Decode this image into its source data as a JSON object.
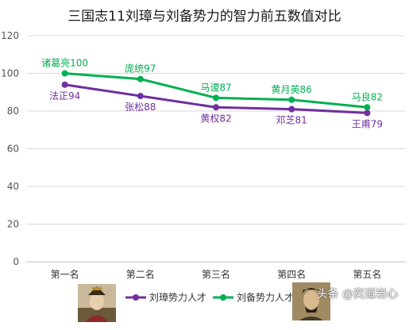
{
  "title": "三国志11刘璋与刘备势力的智力前五数值对比",
  "watermark": "头条 @奕道岩心",
  "colors": {
    "liuzhang": "#7030a0",
    "liubei": "#00b050",
    "grid": "#d9d9d9",
    "axis": "#bfbfbf"
  },
  "chart_data": {
    "type": "line",
    "categories": [
      "第一名",
      "第二名",
      "第三名",
      "第四名",
      "第五名"
    ],
    "ylim": [
      0,
      120
    ],
    "yticks": [
      0,
      20,
      40,
      60,
      80,
      100,
      120
    ],
    "grid": true,
    "legend_position": "bottom",
    "series": [
      {
        "name": "刘璋势力人才",
        "color": "#7030a0",
        "values": [
          94,
          88,
          82,
          81,
          79
        ],
        "labels": [
          "法正94",
          "张松88",
          "黄权82",
          "邓芝81",
          "王甫79"
        ],
        "label_position": "below"
      },
      {
        "name": "刘备势力人才",
        "color": "#00b050",
        "values": [
          100,
          97,
          87,
          86,
          82
        ],
        "labels": [
          "诸葛亮100",
          "庞统97",
          "马谡87",
          "黄月英86",
          "马良82"
        ],
        "label_position": "above"
      }
    ]
  }
}
